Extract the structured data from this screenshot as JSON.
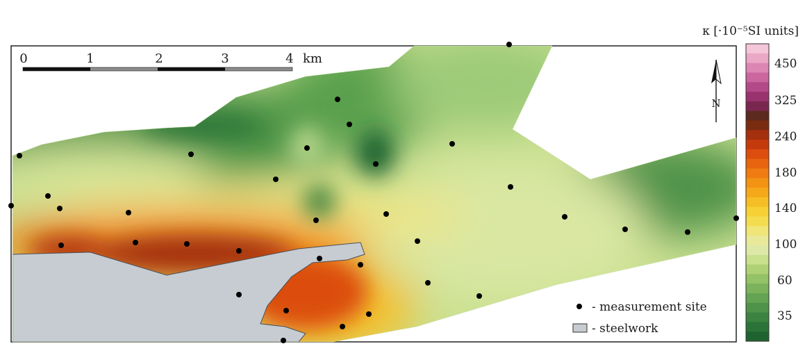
{
  "colorbar": {
    "title": "κ [·10⁻⁵SI units]",
    "ticks": [
      "450",
      "325",
      "240",
      "180",
      "140",
      "100",
      "60",
      "35"
    ],
    "colors": [
      "#f4c6d8",
      "#eaa7c6",
      "#dc86b4",
      "#cb66a0",
      "#b4498a",
      "#9a3270",
      "#7a2750",
      "#5c2a1f",
      "#7a2c10",
      "#a5300e",
      "#c53a0c",
      "#dc4d0e",
      "#e8640f",
      "#ef7b12",
      "#f39314",
      "#f5a91a",
      "#f6be26",
      "#f6d035",
      "#f3dd4f",
      "#efe578",
      "#e9e99a",
      "#dfe9a7",
      "#c9e08d",
      "#afd176",
      "#94c266",
      "#7bb25b",
      "#64a351",
      "#4f934a",
      "#3c8341",
      "#2c7339",
      "#1f6430"
    ]
  },
  "scale_bar": {
    "ticks": [
      "0",
      "1",
      "2",
      "3",
      "4"
    ],
    "unit": "km"
  },
  "north_arrow": {
    "label": "N",
    "icon": "north-arrow-icon"
  },
  "legend": {
    "items": [
      {
        "icon": "dot-icon",
        "label": "- measurement site"
      },
      {
        "icon": "steelwork-swatch-icon",
        "label": "- steelwork",
        "color": "#c7ccd3"
      }
    ]
  },
  "measurement_sites": [
    [
      733,
      64
    ],
    [
      28,
      224
    ],
    [
      275,
      222
    ],
    [
      486,
      143
    ],
    [
      503,
      179
    ],
    [
      442,
      213
    ],
    [
      541,
      236
    ],
    [
      651,
      207
    ],
    [
      397,
      258
    ],
    [
      735,
      269
    ],
    [
      69,
      282
    ],
    [
      16,
      296
    ],
    [
      86,
      300
    ],
    [
      185,
      306
    ],
    [
      455,
      317
    ],
    [
      556,
      308
    ],
    [
      813,
      312
    ],
    [
      900,
      330
    ],
    [
      990,
      334
    ],
    [
      1060,
      314
    ],
    [
      88,
      353
    ],
    [
      195,
      349
    ],
    [
      269,
      351
    ],
    [
      344,
      361
    ],
    [
      601,
      347
    ],
    [
      460,
      372
    ],
    [
      519,
      381
    ],
    [
      616,
      407
    ],
    [
      690,
      426
    ],
    [
      412,
      447
    ],
    [
      344,
      424
    ],
    [
      531,
      452
    ],
    [
      493,
      470
    ],
    [
      408,
      490
    ]
  ]
}
